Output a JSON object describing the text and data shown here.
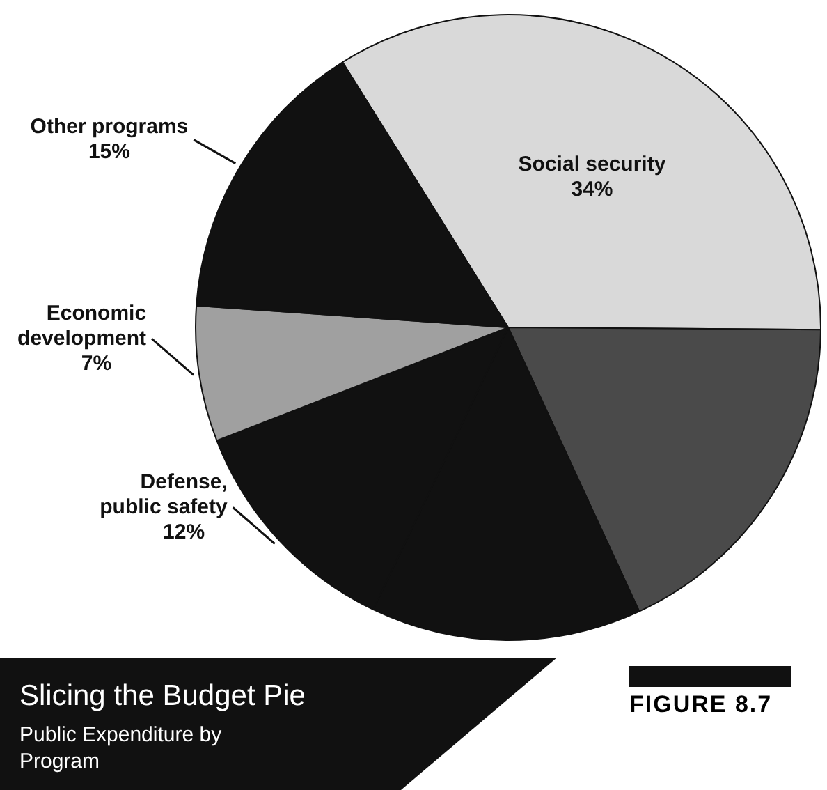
{
  "chart_data": {
    "type": "pie",
    "title": "Slicing the Budget Pie",
    "subtitle": "Public Expenditure by Program",
    "categories": [
      "Social security",
      null,
      null,
      "Defense, public safety",
      "Economic development",
      "Other programs"
    ],
    "values": [
      34,
      18,
      14,
      12,
      7,
      15
    ],
    "value_labels": [
      "34%",
      null,
      null,
      "12%",
      "7%",
      "15%"
    ],
    "colors": [
      "#d9d9d9",
      "#4a4a4a",
      "#111111",
      "#111111",
      "#a0a0a0",
      "#111111"
    ],
    "legend": false,
    "annotations": [
      "FIGURE 8.7"
    ]
  }
}
